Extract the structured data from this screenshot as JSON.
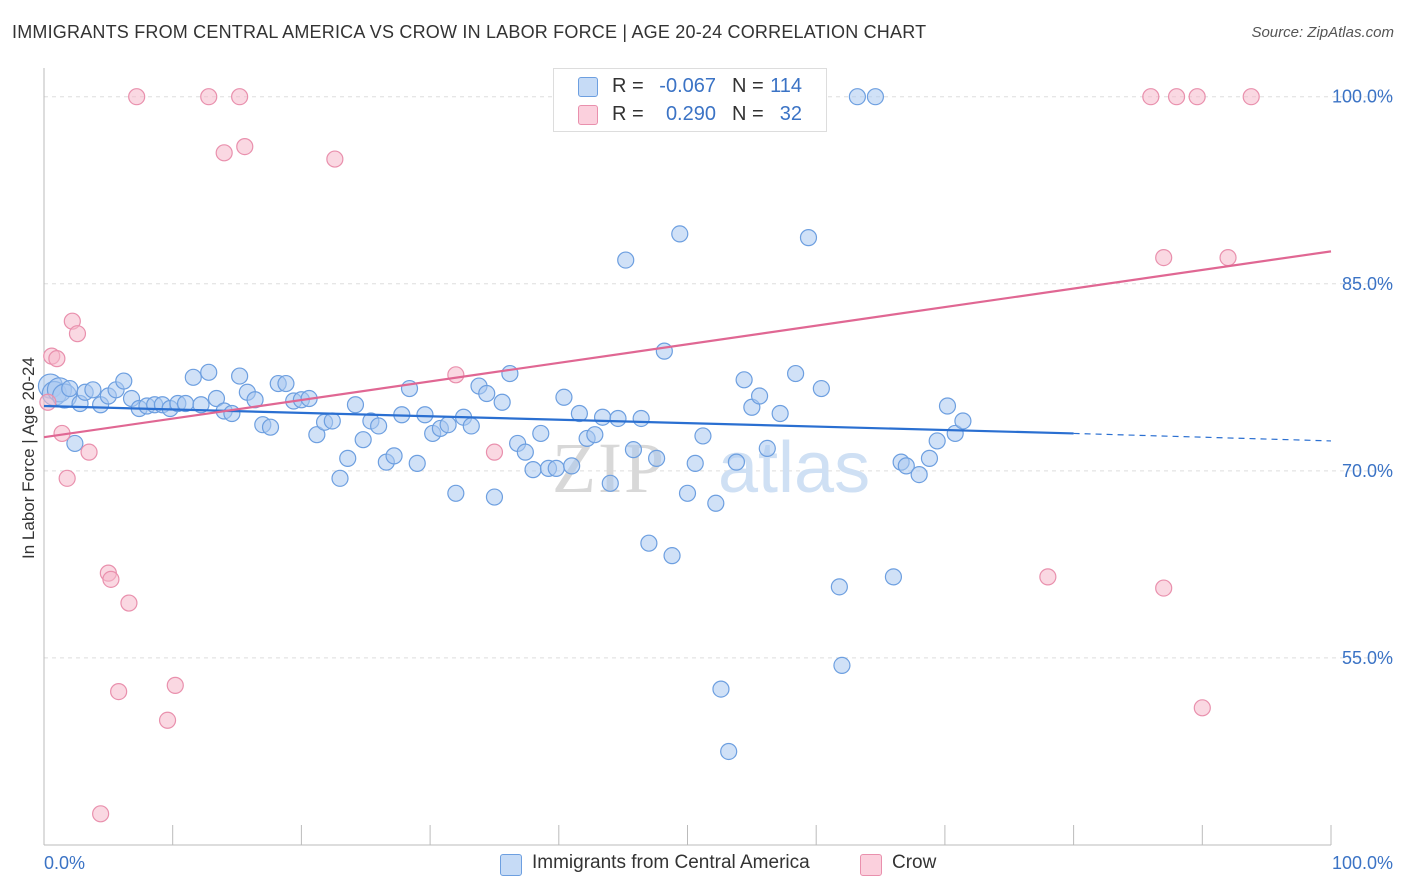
{
  "header": {
    "title": "IMMIGRANTS FROM CENTRAL AMERICA VS CROW IN LABOR FORCE | AGE 20-24 CORRELATION CHART",
    "source": "Source: ZipAtlas.com"
  },
  "watermark": "ZIPatlas",
  "colors": {
    "blue_fill": "#a9c8f0",
    "blue_stroke": "#6d9fe0",
    "blue_line": "#2a6fd1",
    "pink_fill": "#f6b8cb",
    "pink_stroke": "#e990ad",
    "pink_line": "#e06793",
    "tick_text": "#3b73c5",
    "grid": "#dddddd"
  },
  "legend": {
    "rows": [
      {
        "r_label": "R =",
        "r_value": "-0.067",
        "n_label": "N =",
        "n_value": "114",
        "swatch": "blue"
      },
      {
        "r_label": "R =",
        "r_value": "0.290",
        "n_label": "N =",
        "n_value": "32",
        "swatch": "pink"
      }
    ]
  },
  "bottom_legend": [
    {
      "label": "Immigrants from Central America",
      "swatch": "blue"
    },
    {
      "label": "Crow",
      "swatch": "pink"
    }
  ],
  "chart_data": {
    "type": "scatter",
    "title": "IMMIGRANTS FROM CENTRAL AMERICA VS CROW IN LABOR FORCE | AGE 20-24 CORRELATION CHART",
    "xlabel": "",
    "ylabel": "In Labor Force | Age 20-24",
    "xlim": [
      0,
      100
    ],
    "ylim": [
      40,
      101.5
    ],
    "x_tick_labels": [
      "0.0%",
      "100.0%"
    ],
    "y_ticks": [
      55,
      70,
      85,
      100
    ],
    "y_tick_labels": [
      "55.0%",
      "70.0%",
      "85.0%",
      "100.0%"
    ],
    "grid": true,
    "legend_position": "top-center",
    "series": [
      {
        "name": "Immigrants from Central America",
        "color": "blue",
        "points": [
          [
            0.5,
            76.8
          ],
          [
            0.8,
            76.2
          ],
          [
            1.2,
            76.5
          ],
          [
            1.6,
            76.0
          ],
          [
            2.0,
            76.6
          ],
          [
            2.4,
            72.2
          ],
          [
            2.8,
            75.4
          ],
          [
            3.2,
            76.3
          ],
          [
            3.8,
            76.5
          ],
          [
            4.4,
            75.3
          ],
          [
            5.0,
            76.0
          ],
          [
            5.6,
            76.5
          ],
          [
            6.2,
            77.2
          ],
          [
            6.8,
            75.8
          ],
          [
            7.4,
            75.0
          ],
          [
            8.0,
            75.2
          ],
          [
            8.6,
            75.3
          ],
          [
            9.2,
            75.3
          ],
          [
            9.8,
            75.0
          ],
          [
            10.4,
            75.4
          ],
          [
            11.0,
            75.4
          ],
          [
            11.6,
            77.5
          ],
          [
            12.2,
            75.3
          ],
          [
            12.8,
            77.9
          ],
          [
            13.4,
            75.8
          ],
          [
            14.0,
            74.8
          ],
          [
            14.6,
            74.6
          ],
          [
            15.2,
            77.6
          ],
          [
            15.8,
            76.3
          ],
          [
            16.4,
            75.7
          ],
          [
            17.0,
            73.7
          ],
          [
            17.6,
            73.5
          ],
          [
            18.2,
            77.0
          ],
          [
            18.8,
            77.0
          ],
          [
            19.4,
            75.6
          ],
          [
            20.0,
            75.7
          ],
          [
            20.6,
            75.8
          ],
          [
            21.2,
            72.9
          ],
          [
            21.8,
            73.9
          ],
          [
            22.4,
            74.0
          ],
          [
            23.0,
            69.4
          ],
          [
            23.6,
            71.0
          ],
          [
            24.2,
            75.3
          ],
          [
            24.8,
            72.5
          ],
          [
            25.4,
            74.0
          ],
          [
            26.0,
            73.6
          ],
          [
            26.6,
            70.7
          ],
          [
            27.2,
            71.2
          ],
          [
            27.8,
            74.5
          ],
          [
            28.4,
            76.6
          ],
          [
            29.0,
            70.6
          ],
          [
            29.6,
            74.5
          ],
          [
            30.2,
            73.0
          ],
          [
            30.8,
            73.4
          ],
          [
            31.4,
            73.7
          ],
          [
            32.0,
            68.2
          ],
          [
            32.6,
            74.3
          ],
          [
            33.2,
            73.6
          ],
          [
            33.8,
            76.8
          ],
          [
            34.4,
            76.2
          ],
          [
            35.0,
            67.9
          ],
          [
            35.6,
            75.5
          ],
          [
            36.2,
            77.8
          ],
          [
            36.8,
            72.2
          ],
          [
            37.4,
            71.5
          ],
          [
            38.0,
            70.1
          ],
          [
            38.6,
            73.0
          ],
          [
            39.2,
            70.2
          ],
          [
            39.8,
            70.2
          ],
          [
            40.4,
            75.9
          ],
          [
            41.0,
            70.4
          ],
          [
            41.6,
            74.6
          ],
          [
            42.2,
            72.6
          ],
          [
            42.8,
            72.9
          ],
          [
            43.4,
            74.3
          ],
          [
            44.0,
            69.0
          ],
          [
            44.6,
            74.2
          ],
          [
            45.2,
            86.9
          ],
          [
            45.8,
            71.7
          ],
          [
            46.4,
            74.2
          ],
          [
            47.0,
            64.2
          ],
          [
            47.6,
            71.0
          ],
          [
            48.2,
            79.6
          ],
          [
            48.8,
            63.2
          ],
          [
            49.4,
            89.0
          ],
          [
            50.0,
            68.2
          ],
          [
            50.6,
            70.6
          ],
          [
            51.2,
            72.8
          ],
          [
            51.8,
            100.0
          ],
          [
            52.2,
            67.4
          ],
          [
            52.6,
            52.5
          ],
          [
            53.2,
            47.5
          ],
          [
            53.8,
            70.7
          ],
          [
            54.4,
            77.3
          ],
          [
            55.0,
            75.1
          ],
          [
            55.6,
            76.0
          ],
          [
            56.2,
            71.8
          ],
          [
            57.2,
            74.6
          ],
          [
            58.4,
            77.8
          ],
          [
            59.4,
            88.7
          ],
          [
            60.4,
            76.6
          ],
          [
            61.8,
            60.7
          ],
          [
            62.0,
            54.4
          ],
          [
            63.2,
            100.0
          ],
          [
            64.6,
            100.0
          ],
          [
            66.0,
            61.5
          ],
          [
            66.6,
            70.7
          ],
          [
            67.0,
            70.4
          ],
          [
            68.0,
            69.7
          ],
          [
            68.8,
            71.0
          ],
          [
            69.4,
            72.4
          ],
          [
            70.2,
            75.2
          ],
          [
            70.8,
            73.0
          ],
          [
            71.4,
            74.0
          ]
        ]
      },
      {
        "name": "Crow",
        "color": "pink",
        "points": [
          [
            0.3,
            75.5
          ],
          [
            0.6,
            79.2
          ],
          [
            1.0,
            79.0
          ],
          [
            1.4,
            73.0
          ],
          [
            1.8,
            69.4
          ],
          [
            2.2,
            82.0
          ],
          [
            2.6,
            81.0
          ],
          [
            3.5,
            71.5
          ],
          [
            5.0,
            61.8
          ],
          [
            5.2,
            61.3
          ],
          [
            5.8,
            52.3
          ],
          [
            6.6,
            59.4
          ],
          [
            7.2,
            100.0
          ],
          [
            9.6,
            50.0
          ],
          [
            10.2,
            52.8
          ],
          [
            12.8,
            100.0
          ],
          [
            14.0,
            95.5
          ],
          [
            15.2,
            100.0
          ],
          [
            15.6,
            96.0
          ],
          [
            22.6,
            95.0
          ],
          [
            32.0,
            77.7
          ],
          [
            35.0,
            71.5
          ],
          [
            4.4,
            42.5
          ],
          [
            78.0,
            61.5
          ],
          [
            87.0,
            60.6
          ],
          [
            90.0,
            51.0
          ],
          [
            86.0,
            100.0
          ],
          [
            88.0,
            100.0
          ],
          [
            89.6,
            100.0
          ],
          [
            93.8,
            100.0
          ],
          [
            87.0,
            87.1
          ],
          [
            92.0,
            87.1
          ]
        ]
      }
    ],
    "trend_lines": [
      {
        "series": "Immigrants from Central America",
        "x_solid": [
          0,
          80
        ],
        "y_solid": [
          75.2,
          73.0
        ],
        "x_dashed": [
          80,
          100
        ],
        "y_dashed": [
          73.0,
          72.4
        ]
      },
      {
        "series": "Crow",
        "x": [
          0,
          100
        ],
        "y": [
          72.7,
          87.6
        ]
      }
    ]
  }
}
